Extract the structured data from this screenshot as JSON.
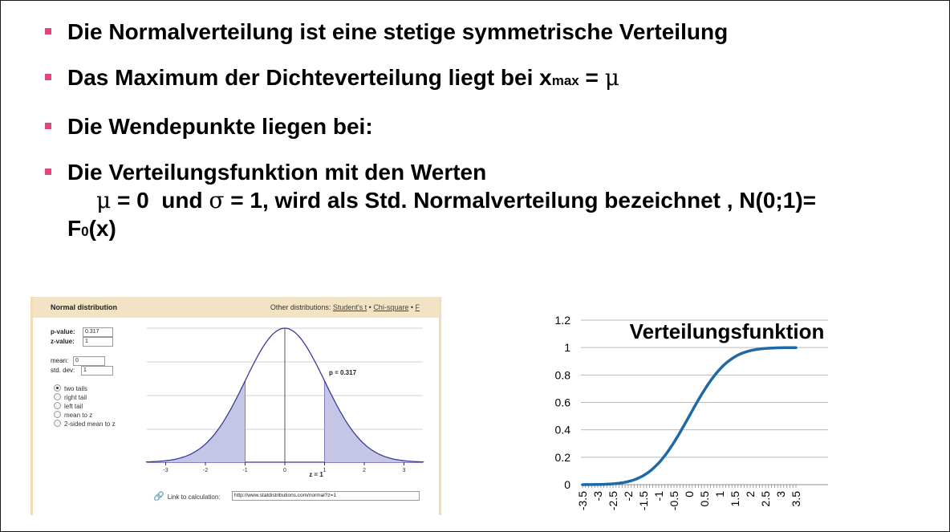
{
  "bullets": {
    "b1": "Die Normalverteilung ist eine stetige symmetrische Verteilung",
    "b2_pre": "Das Maximum der Dichteverteilung liegt bei x",
    "b2_sub": "max",
    "b2_post": " = ",
    "b2_mu": "μ",
    "b3": "Die Wendepunkte liegen bei:",
    "b4_line1": "Die Verteilungsfunktion mit den Werten",
    "b4_mu": "μ",
    "b4_mid": " = 0  und ",
    "b4_sigma": "σ",
    "b4_post": " = 1, wird als Std. Normalverteilung bezeichnet , N(0;1)=",
    "b4_f": "F",
    "b4_fsub": "0",
    "b4_fpost": "(x)"
  },
  "calculator": {
    "title": "Normal distribution",
    "other_label": "Other distributions: ",
    "other_links": [
      "Student's t",
      "Chi-square",
      "F"
    ],
    "sep": " • ",
    "p_label": "p-value:",
    "p_value": "0.317",
    "z_label": "z-value:",
    "z_value": "1",
    "mean_label": "mean:",
    "mean_value": "0",
    "sd_label": "std. dev:",
    "sd_value": "1",
    "options": [
      "two tails",
      "right tail",
      "left tail",
      "mean to z",
      "2-sided mean to z"
    ],
    "selected_option": "two tails",
    "plot_annotation": "p = 0.317",
    "x_ticks": [
      "-3",
      "-2",
      "-1",
      "0",
      "1",
      "2",
      "3"
    ],
    "z_caption": "z = 1",
    "link_label": "Link to calculation:",
    "link_url": "http://www.statdistributions.com/normal?z=1",
    "colors": {
      "header": "#f3e3c5",
      "curve": "#3b3b9a",
      "shade": "#c5c6e6"
    }
  },
  "chart_data": {
    "type": "line",
    "title": "Verteilungsfunktion",
    "xlabel": "",
    "ylabel": "",
    "ylim": [
      0,
      1.2
    ],
    "y_ticks": [
      "0",
      "0.2",
      "0.4",
      "0.6",
      "0.8",
      "1",
      "1.2"
    ],
    "x_tick_labels": [
      "-3.5",
      "-3",
      "-2.5",
      "-2",
      "-1.5",
      "-1",
      "-0.5",
      "0",
      "0.5",
      "1",
      "1.5",
      "2",
      "2.5",
      "3",
      "3.5"
    ],
    "x": [
      -3.5,
      -3,
      -2.5,
      -2,
      -1.5,
      -1,
      -0.5,
      0,
      0.5,
      1,
      1.5,
      2,
      2.5,
      3,
      3.5
    ],
    "values": [
      0.0002,
      0.0013,
      0.0062,
      0.0228,
      0.0668,
      0.1587,
      0.3085,
      0.5,
      0.6915,
      0.8413,
      0.9332,
      0.9772,
      0.9938,
      0.9987,
      0.9998
    ],
    "grid": "horizontal",
    "legend": "none",
    "color": "#1f6aa5"
  }
}
